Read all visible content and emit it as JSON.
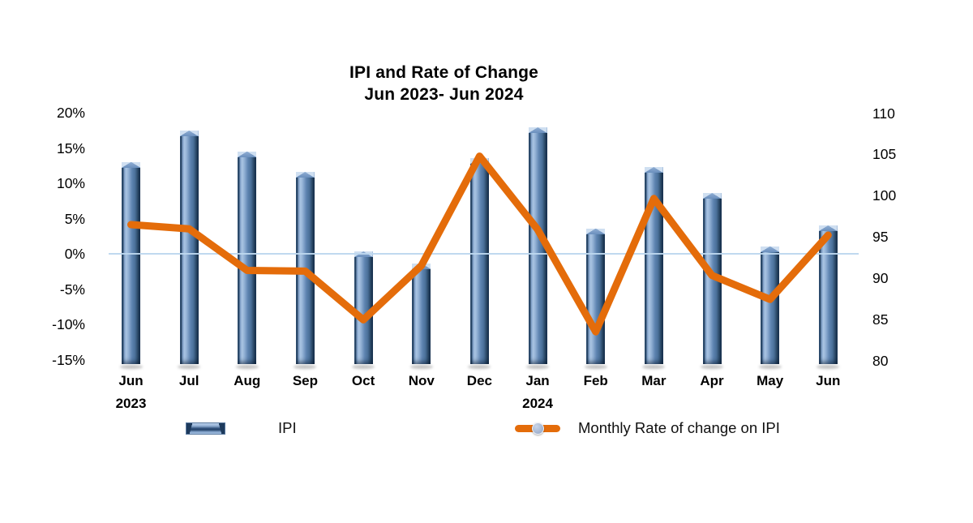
{
  "chart_data": {
    "type": "combo-bar-line",
    "title": "IPI and Rate of Change",
    "subtitle": "Jun 2023- Jun 2024",
    "categories": [
      {
        "label": "Jun",
        "sub": "2023"
      },
      {
        "label": "Jul",
        "sub": ""
      },
      {
        "label": "Aug",
        "sub": ""
      },
      {
        "label": "Sep",
        "sub": ""
      },
      {
        "label": "Oct",
        "sub": ""
      },
      {
        "label": "Nov",
        "sub": ""
      },
      {
        "label": "Dec",
        "sub": ""
      },
      {
        "label": "Jan",
        "sub": "2024"
      },
      {
        "label": "Feb",
        "sub": ""
      },
      {
        "label": "Mar",
        "sub": ""
      },
      {
        "label": "Apr",
        "sub": ""
      },
      {
        "label": "May",
        "sub": ""
      },
      {
        "label": "Jun",
        "sub": ""
      }
    ],
    "series": [
      {
        "name": "IPI",
        "type": "bar",
        "axis": "right",
        "values": [
          104.1,
          107.9,
          105.4,
          102.9,
          93.3,
          91.8,
          104.6,
          108.3,
          96.0,
          103.5,
          100.4,
          93.9,
          96.4
        ]
      },
      {
        "name": "Monthly Rate of change on IPI",
        "type": "line",
        "axis": "left",
        "values": [
          4.2,
          3.6,
          -2.3,
          -2.4,
          -9.3,
          -1.6,
          13.9,
          3.5,
          -11.0,
          7.9,
          -3.0,
          -6.4,
          2.7
        ]
      }
    ],
    "left_axis": {
      "unit": "percent",
      "tick_labels": [
        "20%",
        "15%",
        "10%",
        "5%",
        "0%",
        "-5%",
        "-10%",
        "-15%"
      ],
      "tick_values": [
        20,
        15,
        10,
        5,
        0,
        -5,
        -10,
        -15
      ],
      "range": [
        -15,
        20
      ]
    },
    "right_axis": {
      "unit": "index",
      "tick_labels": [
        "110",
        "105",
        "100",
        "95",
        "90",
        "85",
        "80"
      ],
      "tick_values": [
        110,
        105,
        100,
        95,
        90,
        85,
        80
      ],
      "range": [
        80,
        110
      ]
    },
    "gridlines": {
      "zero_line_only": true
    },
    "legend_position": "bottom",
    "colors": {
      "bar_mid": "#5f85b2",
      "bar_light": "#aac5e3",
      "bar_dark": "#1c3a5e",
      "line": "#e46c0a",
      "gridline": "#bdd7ee",
      "marker": "#9fb3ce"
    }
  },
  "legend": {
    "items": [
      {
        "label": "IPI",
        "swatch": "bar"
      },
      {
        "label": "Monthly Rate of change on IPI",
        "swatch": "line-marker"
      }
    ]
  }
}
